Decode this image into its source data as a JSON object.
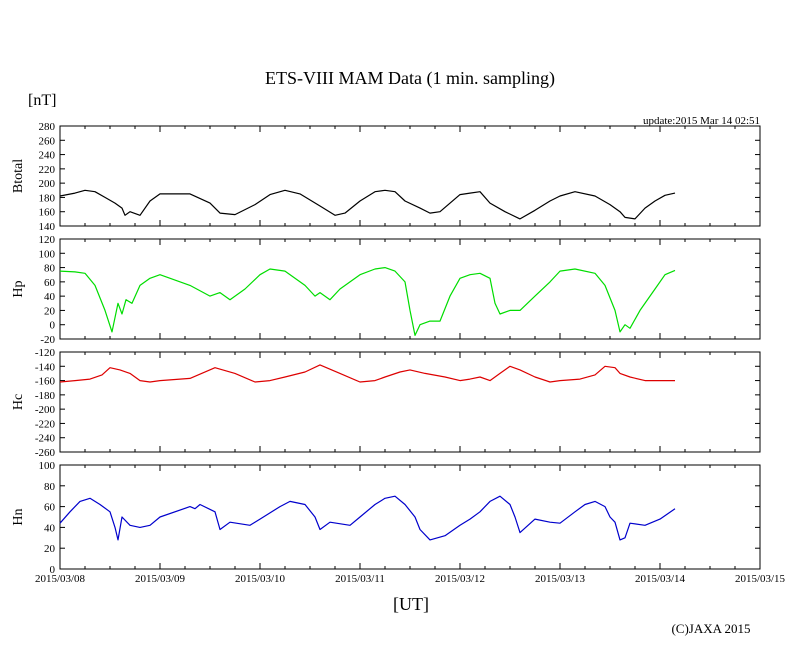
{
  "header": {
    "title": "ETS-VIII MAM Data (1 min. sampling)",
    "unit": "[nT]",
    "update": "update:2015 Mar 14 02:51"
  },
  "footer": {
    "xlabel": "[UT]",
    "copyright": "(C)JAXA 2015"
  },
  "chart_data": {
    "type": "line",
    "x_ticks": [
      "2015/03/08",
      "2015/03/09",
      "2015/03/10",
      "2015/03/11",
      "2015/03/12",
      "2015/03/13",
      "2015/03/14",
      "2015/03/15"
    ],
    "x_range_days": [
      0,
      7
    ],
    "panels": [
      {
        "name": "Btotal",
        "color": "#000000",
        "ylim": [
          140,
          280
        ],
        "ystep": 20,
        "x": [
          0,
          0.15,
          0.25,
          0.35,
          0.45,
          0.55,
          0.62,
          0.65,
          0.7,
          0.8,
          0.9,
          1.0,
          1.3,
          1.5,
          1.6,
          1.75,
          1.95,
          2.1,
          2.25,
          2.4,
          2.6,
          2.75,
          2.85,
          3.0,
          3.15,
          3.25,
          3.35,
          3.45,
          3.6,
          3.7,
          3.8,
          4.0,
          4.1,
          4.2,
          4.3,
          4.45,
          4.6,
          4.75,
          4.9,
          5.0,
          5.15,
          5.35,
          5.5,
          5.6,
          5.65,
          5.75,
          5.85,
          5.95,
          6.05,
          6.15
        ],
        "y": [
          182,
          186,
          190,
          188,
          180,
          172,
          165,
          155,
          160,
          155,
          175,
          185,
          185,
          172,
          158,
          156,
          170,
          184,
          190,
          185,
          168,
          155,
          158,
          175,
          188,
          190,
          188,
          175,
          165,
          158,
          160,
          184,
          186,
          188,
          172,
          160,
          150,
          162,
          175,
          182,
          188,
          182,
          170,
          160,
          152,
          150,
          165,
          175,
          183,
          186
        ]
      },
      {
        "name": "Hp",
        "color": "#00dd00",
        "ylim": [
          -20,
          120
        ],
        "ystep": 20,
        "x": [
          0,
          0.15,
          0.25,
          0.35,
          0.45,
          0.52,
          0.58,
          0.62,
          0.66,
          0.72,
          0.8,
          0.9,
          1.0,
          1.3,
          1.5,
          1.6,
          1.7,
          1.85,
          2.0,
          2.1,
          2.25,
          2.45,
          2.55,
          2.6,
          2.7,
          2.8,
          3.0,
          3.15,
          3.25,
          3.35,
          3.45,
          3.5,
          3.55,
          3.6,
          3.7,
          3.8,
          3.9,
          4.0,
          4.1,
          4.2,
          4.3,
          4.35,
          4.4,
          4.5,
          4.6,
          4.75,
          4.9,
          5.0,
          5.15,
          5.35,
          5.45,
          5.55,
          5.6,
          5.65,
          5.7,
          5.8,
          5.95,
          6.05,
          6.15
        ],
        "y": [
          75,
          74,
          72,
          55,
          20,
          -10,
          30,
          15,
          35,
          30,
          55,
          65,
          70,
          55,
          40,
          45,
          35,
          50,
          70,
          78,
          75,
          55,
          40,
          45,
          35,
          50,
          70,
          78,
          80,
          75,
          60,
          20,
          -15,
          0,
          5,
          5,
          40,
          65,
          70,
          72,
          65,
          30,
          15,
          20,
          20,
          40,
          60,
          75,
          78,
          72,
          55,
          20,
          -10,
          0,
          -5,
          20,
          50,
          70,
          76
        ]
      },
      {
        "name": "Hc",
        "color": "#dd0000",
        "ylim": [
          -260,
          -120
        ],
        "ystep": 20,
        "x": [
          0,
          0.15,
          0.3,
          0.42,
          0.5,
          0.6,
          0.7,
          0.8,
          0.9,
          1.0,
          1.3,
          1.55,
          1.75,
          1.95,
          2.1,
          2.25,
          2.45,
          2.6,
          2.8,
          3.0,
          3.15,
          3.25,
          3.4,
          3.5,
          3.65,
          3.85,
          4.0,
          4.1,
          4.2,
          4.3,
          4.4,
          4.5,
          4.6,
          4.75,
          4.9,
          5.0,
          5.2,
          5.35,
          5.45,
          5.55,
          5.6,
          5.7,
          5.85,
          6.15
        ],
        "y": [
          -162,
          -160,
          -158,
          -152,
          -142,
          -145,
          -150,
          -160,
          -162,
          -160,
          -157,
          -142,
          -150,
          -162,
          -160,
          -155,
          -148,
          -138,
          -150,
          -162,
          -160,
          -155,
          -148,
          -145,
          -150,
          -155,
          -160,
          -158,
          -155,
          -160,
          -150,
          -140,
          -145,
          -155,
          -162,
          -160,
          -158,
          -152,
          -140,
          -142,
          -150,
          -155,
          -160,
          -160
        ]
      },
      {
        "name": "Hn",
        "color": "#0000cc",
        "ylim": [
          0,
          100
        ],
        "ystep": 20,
        "x": [
          0,
          0.1,
          0.2,
          0.3,
          0.4,
          0.5,
          0.55,
          0.58,
          0.62,
          0.7,
          0.8,
          0.9,
          1.0,
          1.3,
          1.35,
          1.4,
          1.55,
          1.6,
          1.7,
          1.9,
          2.0,
          2.2,
          2.3,
          2.45,
          2.55,
          2.6,
          2.7,
          2.9,
          3.0,
          3.15,
          3.25,
          3.35,
          3.45,
          3.55,
          3.6,
          3.7,
          3.85,
          4.0,
          4.1,
          4.2,
          4.3,
          4.4,
          4.5,
          4.55,
          4.6,
          4.75,
          4.9,
          5.0,
          5.15,
          5.25,
          5.35,
          5.45,
          5.5,
          5.55,
          5.6,
          5.65,
          5.7,
          5.85,
          6.0,
          6.15
        ],
        "y": [
          44,
          55,
          65,
          68,
          62,
          55,
          40,
          28,
          50,
          42,
          40,
          42,
          50,
          60,
          58,
          62,
          55,
          38,
          45,
          42,
          48,
          60,
          65,
          62,
          50,
          38,
          45,
          42,
          50,
          62,
          68,
          70,
          62,
          50,
          38,
          28,
          32,
          42,
          48,
          55,
          65,
          70,
          62,
          50,
          35,
          48,
          45,
          44,
          55,
          62,
          65,
          60,
          50,
          45,
          28,
          30,
          44,
          42,
          48,
          58
        ]
      }
    ]
  }
}
